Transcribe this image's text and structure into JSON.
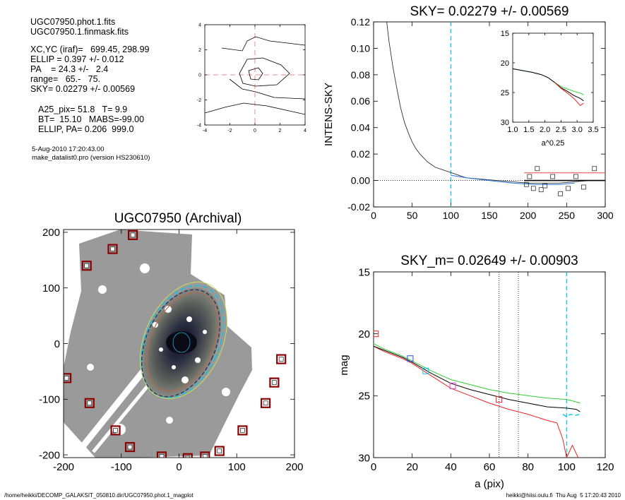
{
  "info": {
    "file": "UGC07950.phot.1.fits",
    "mask": "UGC07950.1.finmask.fits",
    "xcyc": "XC,YC (iraf)=   699.45, 298.99",
    "ellip": "ELLIP = 0.397 +/- 0.012",
    "pa": "PA    = 24.3 +/-   2.4",
    "range": "range=   65.-   75.",
    "sky": "SKY= 0.02279 +/- 0.00569",
    "a25": "A25_pix= 51.8   T= 9.9",
    "bt": "BT=  15.10   MABS=-99.00",
    "ellippa": "ELLIP, PA= 0.206  999.0",
    "date": "5-Aug-2010 17:20:43.00",
    "program": "make_datalist0.pro (version HS230610)"
  },
  "footer": {
    "left": "/home/heikki/DECOMP_GALAKSIT_050810.dir/UGC07950.phot.1_magplot",
    "right": "heikki@hiisi.oulu.fi  Thu Aug  5 17:20:43 2010"
  },
  "colors": {
    "white": "#000000",
    "green": "#33cc33",
    "red": "#ee2222",
    "cyan": "#00c8e8",
    "blue": "#2255dd",
    "mask": "#8b0000"
  },
  "chart_data": [
    {
      "id": "contour",
      "type": "contour",
      "title": "",
      "xlim": [
        -4,
        4
      ],
      "ylim": [
        -4,
        4
      ],
      "xticks": [
        -4,
        -2,
        0,
        2,
        4
      ],
      "yticks": [
        -4,
        -2,
        0,
        2,
        4
      ],
      "center": [
        0,
        0
      ]
    },
    {
      "id": "sky",
      "type": "line",
      "title": "SKY= 0.02279 +/- 0.00569",
      "xlabel": "",
      "ylabel": "INTENS-SKY",
      "xlim": [
        0,
        300
      ],
      "ylim": [
        -0.02,
        0.12
      ],
      "xticks": [
        0,
        50,
        100,
        150,
        200,
        250,
        300
      ],
      "yticks": [
        -0.02,
        0.0,
        0.02,
        0.04,
        0.06,
        0.08,
        0.1,
        0.12
      ],
      "ytick_labels": [
        "-0.02",
        "0.00",
        "0.02",
        "0.04",
        "0.06",
        "0.08",
        "0.10",
        "0.12"
      ],
      "profile": {
        "x": [
          16,
          20,
          25,
          30,
          35,
          40,
          45,
          50,
          55,
          60,
          65,
          70,
          75,
          80,
          90,
          100,
          110,
          120,
          140,
          160,
          180,
          200,
          220,
          240,
          260,
          280,
          300
        ],
        "y": [
          0.125,
          0.105,
          0.086,
          0.07,
          0.055,
          0.044,
          0.036,
          0.029,
          0.024,
          0.02,
          0.017,
          0.014,
          0.012,
          0.01,
          0.008,
          0.006,
          0.004,
          0.002,
          0.001,
          0.0,
          -0.001,
          -0.002,
          -0.002,
          -0.002,
          -0.001,
          0.0,
          0.0
        ]
      },
      "blue_profile": {
        "x": [
          100,
          120,
          150,
          180,
          210,
          240,
          260
        ],
        "y": [
          0.004,
          0.002,
          0.0,
          -0.002,
          -0.003,
          -0.003,
          -0.002
        ]
      },
      "sky_points": {
        "x": [
          198,
          202,
          207,
          212,
          217,
          222,
          232,
          242,
          252,
          262,
          272,
          286
        ],
        "y": [
          -0.003,
          0.003,
          -0.006,
          0.009,
          -0.007,
          -0.004,
          0.003,
          -0.01,
          -0.006,
          0.003,
          -0.005,
          0.009
        ]
      },
      "red_level": 0.0058,
      "black_level": 0.0,
      "vline": 100,
      "inset": {
        "xlabel": "a^0.25",
        "xlim": [
          1.0,
          3.5
        ],
        "ylim": [
          15,
          30
        ],
        "xticks": [
          1.0,
          1.5,
          2.0,
          2.5,
          3.0,
          3.5
        ],
        "xtick_labels": [
          "1.0",
          "1.5",
          "2.0",
          "2.5",
          "3.0",
          "3.5"
        ],
        "yticks": [
          15,
          20,
          25,
          30
        ],
        "green": {
          "x": [
            1.0,
            1.3,
            1.6,
            1.9,
            2.1,
            2.3,
            2.5,
            2.7,
            2.9,
            3.1,
            3.2
          ],
          "y": [
            21.0,
            21.3,
            21.6,
            22.0,
            22.5,
            23.3,
            24.0,
            24.4,
            24.8,
            25.1,
            25.4
          ]
        },
        "black": {
          "x": [
            1.0,
            1.3,
            1.6,
            1.9,
            2.1,
            2.3,
            2.5,
            2.7,
            2.9,
            3.1,
            3.2
          ],
          "y": [
            21.0,
            21.3,
            21.6,
            22.0,
            22.5,
            23.3,
            24.2,
            24.8,
            25.5,
            26.0,
            26.4
          ]
        },
        "red": {
          "x": [
            2.3,
            2.5,
            2.7,
            2.9,
            3.0,
            3.1,
            3.2
          ],
          "y": [
            23.3,
            24.3,
            25.1,
            26.0,
            26.6,
            27.2,
            26.8
          ]
        }
      }
    },
    {
      "id": "image",
      "type": "scatter",
      "title": "UGC07950 (Archival)",
      "xlim": [
        -200,
        200
      ],
      "ylim": [
        -205,
        205
      ],
      "xticks": [
        -200,
        -100,
        0,
        100,
        200
      ],
      "yticks": [
        -200,
        -100,
        0,
        100,
        200
      ],
      "mask_boxes": {
        "x": [
          -80,
          -115,
          -160,
          -195,
          -155,
          -110,
          -85,
          -30,
          15,
          45,
          70,
          110,
          150,
          165,
          177
        ],
        "y": [
          195,
          170,
          140,
          -62,
          -107,
          -156,
          -186,
          -203,
          -206,
          -203,
          -193,
          -156,
          -107,
          -70,
          -28
        ]
      }
    },
    {
      "id": "mag",
      "type": "line",
      "title": "SKY_m=  0.02649 +/- 0.00903",
      "xlabel": "a (pix)",
      "ylabel": "mag",
      "xlim": [
        0,
        120
      ],
      "ylim": [
        30,
        15
      ],
      "xticks": [
        0,
        20,
        40,
        60,
        80,
        100,
        120
      ],
      "yticks": [
        15,
        20,
        25,
        30
      ],
      "vlines_dotted": [
        65,
        75
      ],
      "vline_cyan": 100,
      "black": {
        "x": [
          0,
          5,
          10,
          15,
          20,
          30,
          40,
          50,
          60,
          70,
          80,
          90,
          100,
          105,
          107
        ],
        "y": [
          21.0,
          21.3,
          21.6,
          21.9,
          22.3,
          23.2,
          24.0,
          24.5,
          24.9,
          25.3,
          25.6,
          25.9,
          26.0,
          26.1,
          26.3
        ]
      },
      "green": {
        "x": [
          0,
          5,
          10,
          15,
          20,
          30,
          40,
          50,
          60,
          70,
          80,
          90,
          100,
          105,
          107
        ],
        "y": [
          20.8,
          21.2,
          21.5,
          21.8,
          22.2,
          23.0,
          23.7,
          24.1,
          24.5,
          24.8,
          25.0,
          25.2,
          25.3,
          25.5,
          25.6
        ]
      },
      "red": {
        "x": [
          0,
          5,
          10,
          15,
          20,
          30,
          40,
          50,
          60,
          70,
          80,
          90,
          95,
          98,
          100,
          103,
          106
        ],
        "y": [
          21.0,
          21.4,
          21.7,
          22.0,
          22.4,
          23.4,
          24.4,
          25.0,
          25.6,
          26.1,
          26.5,
          27.0,
          27.2,
          28.5,
          30.0,
          29.0,
          30.0
        ]
      },
      "cyan": {
        "x": [
          98,
          100,
          102,
          104,
          107
        ],
        "y": [
          26.5,
          26.7,
          26.5,
          26.6,
          26.5
        ]
      },
      "markers": [
        {
          "x": 1,
          "y": 20.0,
          "color": "#ee2222"
        },
        {
          "x": 19,
          "y": 22.0,
          "color": "#2255dd"
        },
        {
          "x": 27,
          "y": 23.0,
          "color": "#00c8e8"
        },
        {
          "x": 41,
          "y": 24.2,
          "color": "#cc44cc"
        },
        {
          "x": 65,
          "y": 25.3,
          "color": "#ee2222"
        }
      ]
    }
  ]
}
